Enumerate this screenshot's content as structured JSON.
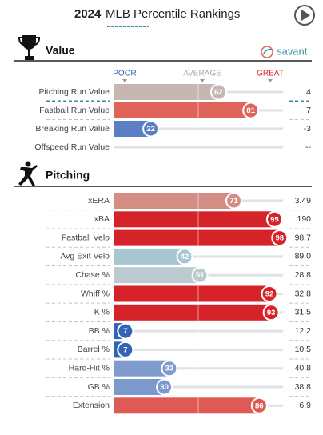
{
  "header": {
    "year": "2024",
    "title": "MLB Percentile Rankings"
  },
  "logo": "savant",
  "scale": {
    "poor": "POOR",
    "average": "AVERAGE",
    "great": "GREAT"
  },
  "chart_data": [
    {
      "type": "bar",
      "title": "Value",
      "categories": [
        "Pitching Run Value",
        "Fastball Run Value",
        "Breaking Run Value",
        "Offspeed Run Value"
      ],
      "values": [
        62,
        81,
        22,
        null
      ],
      "colors": [
        "#c8b6b2",
        "#e0635a",
        "#5a7fc2",
        "#cccccc"
      ],
      "stats": [
        "4",
        "7",
        "-3",
        "--"
      ],
      "xlim": [
        0,
        100
      ]
    },
    {
      "type": "bar",
      "title": "Pitching",
      "categories": [
        "xERA",
        "xBA",
        "Fastball Velo",
        "Avg Exit Velo",
        "Chase %",
        "Whiff %",
        "K %",
        "BB %",
        "Barrel %",
        "Hard-Hit %",
        "GB %",
        "Extension"
      ],
      "values": [
        71,
        95,
        98,
        42,
        51,
        92,
        93,
        7,
        7,
        33,
        30,
        86
      ],
      "colors": [
        "#d38d85",
        "#d62229",
        "#d62229",
        "#a7c6d1",
        "#bccbcf",
        "#d62229",
        "#d62229",
        "#3462b5",
        "#3462b5",
        "#7f9ccd",
        "#7b99cc",
        "#e05a55"
      ],
      "stats": [
        "3.49",
        ".190",
        "98.7",
        "89.0",
        "28.8",
        "32.8",
        "31.5",
        "12.2",
        "10.5",
        "40.8",
        "38.8",
        "6.9"
      ],
      "xlim": [
        0,
        100
      ]
    }
  ]
}
